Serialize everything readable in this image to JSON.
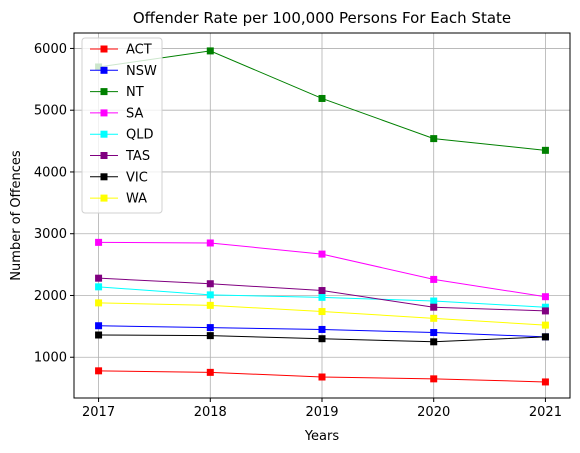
{
  "chart_data": {
    "type": "line",
    "title": "Offender Rate per 100,000 Persons For Each State",
    "xlabel": "Years",
    "ylabel": "Number of Offences",
    "x": [
      2017,
      2018,
      2019,
      2020,
      2021
    ],
    "xlim": [
      2016.78,
      2021.22
    ],
    "ylim": [
      340,
      6250
    ],
    "yticks": [
      1000,
      2000,
      3000,
      4000,
      5000,
      6000
    ],
    "grid": true,
    "legend_position": "upper-left",
    "marker": "square",
    "series": [
      {
        "name": "ACT",
        "color": "#ff0000",
        "values": [
          780,
          755,
          680,
          650,
          600
        ]
      },
      {
        "name": "NSW",
        "color": "#0000ff",
        "values": [
          1510,
          1480,
          1450,
          1400,
          1330
        ]
      },
      {
        "name": "NT",
        "color": "#008000",
        "values": [
          5700,
          5960,
          5190,
          4540,
          4350
        ]
      },
      {
        "name": "SA",
        "color": "#ff00ff",
        "values": [
          2860,
          2850,
          2670,
          2260,
          1980
        ]
      },
      {
        "name": "QLD",
        "color": "#00ffff",
        "values": [
          2140,
          2010,
          1970,
          1910,
          1810
        ]
      },
      {
        "name": "TAS",
        "color": "#800080",
        "values": [
          2280,
          2190,
          2080,
          1810,
          1750
        ]
      },
      {
        "name": "VIC",
        "color": "#000000",
        "values": [
          1360,
          1350,
          1300,
          1250,
          1330
        ]
      },
      {
        "name": "WA",
        "color": "#ffff00",
        "values": [
          1880,
          1840,
          1740,
          1630,
          1520
        ]
      }
    ]
  }
}
